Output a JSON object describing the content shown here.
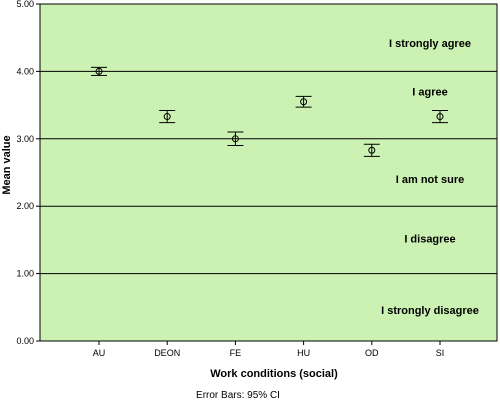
{
  "chart_data": {
    "type": "errorbar",
    "xlabel": "Work conditions (social)",
    "ylabel": "Mean value",
    "ylim": [
      0,
      5
    ],
    "yticks": [
      "0.00",
      "1.00",
      "2.00",
      "3.00",
      "4.00",
      "5.00"
    ],
    "ytick_values": [
      0,
      1,
      2,
      3,
      4,
      5
    ],
    "categories": [
      "AU",
      "DEON",
      "FE",
      "HU",
      "OD",
      "SI"
    ],
    "means": [
      4.0,
      3.33,
      3.0,
      3.55,
      2.83,
      3.33
    ],
    "ci_lower": [
      3.94,
      3.24,
      2.9,
      3.47,
      2.74,
      3.24
    ],
    "ci_upper": [
      4.06,
      3.42,
      3.1,
      3.63,
      2.92,
      3.42
    ],
    "grid_lines": [
      1,
      2,
      3,
      4,
      5
    ],
    "band_labels": [
      {
        "text": "I strongly agree",
        "y": 4.42
      },
      {
        "text": "I agree",
        "y": 3.7
      },
      {
        "text": "I am not sure",
        "y": 2.4
      },
      {
        "text": "I disagree",
        "y": 1.52
      },
      {
        "text": "I strongly disagree",
        "y": 0.46
      }
    ],
    "footnote": "Error Bars: 95% CI",
    "plot_background": "#ccf2b3",
    "line_color": "#000000"
  }
}
